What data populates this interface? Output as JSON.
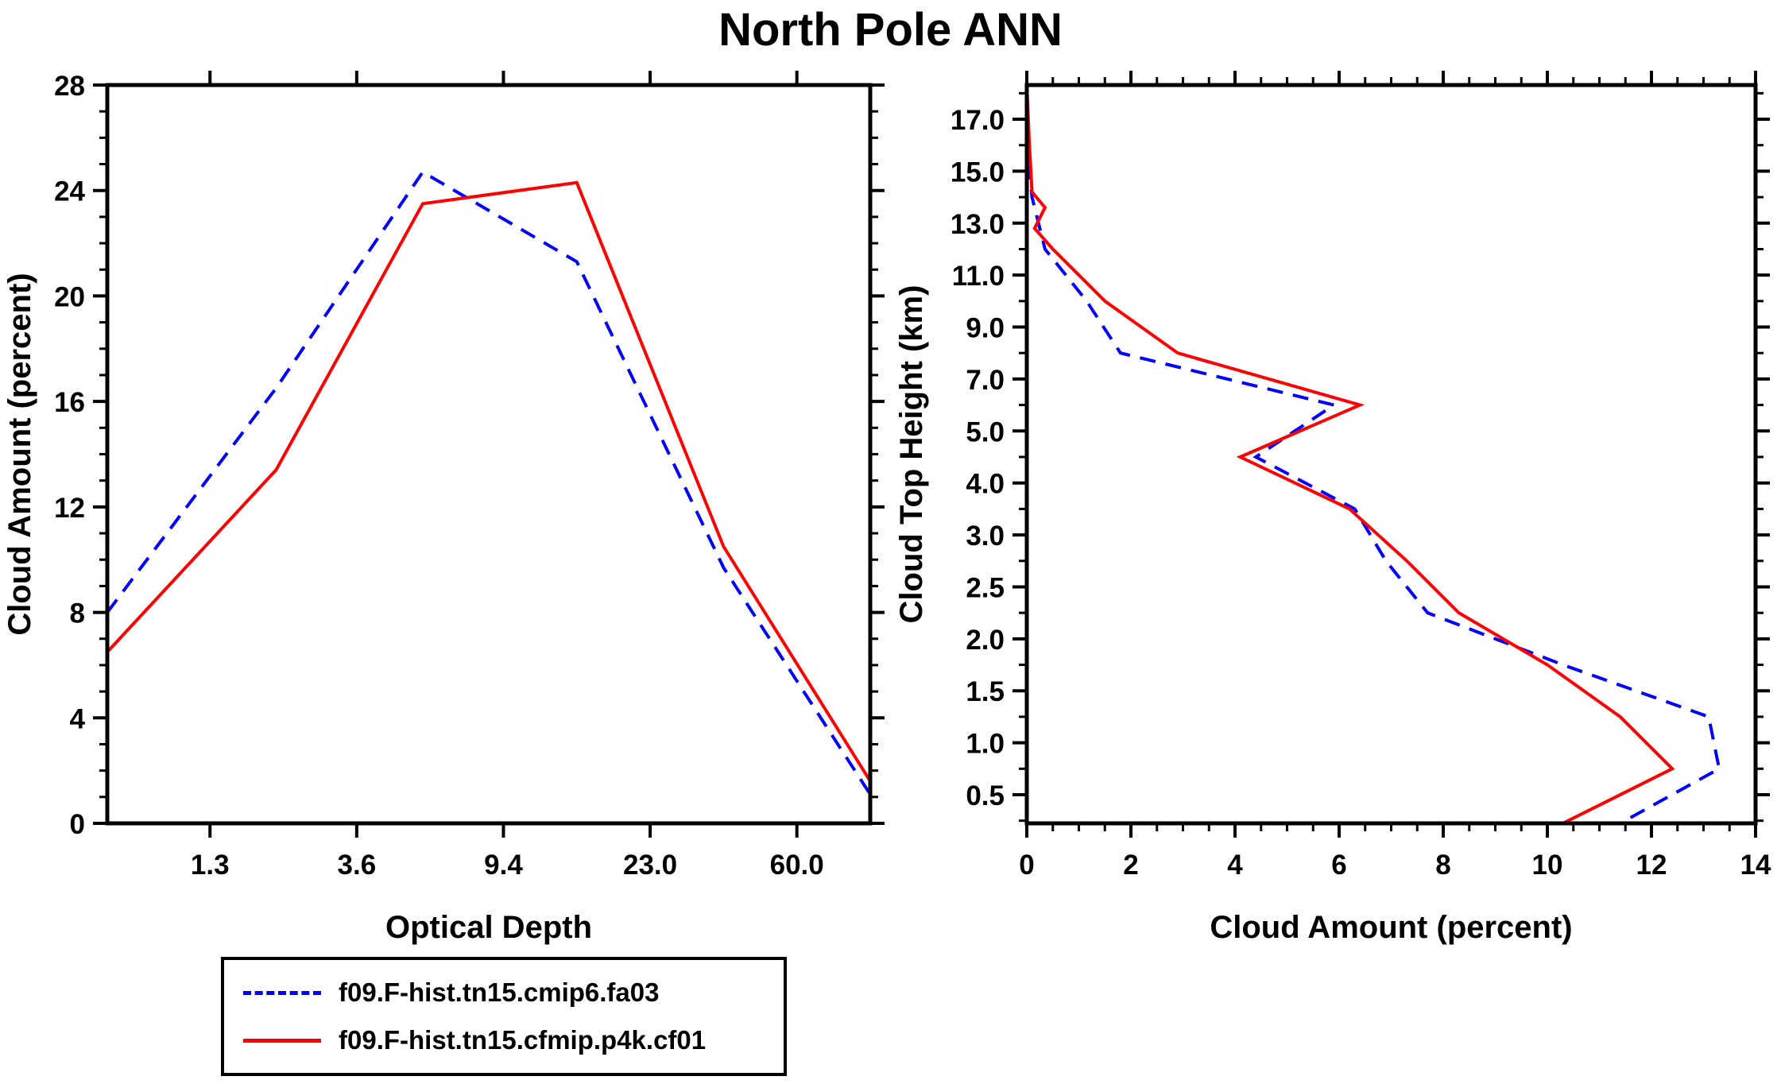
{
  "title": "North Pole ANN",
  "colors": {
    "blue": "#0000ff",
    "red": "#ff0000",
    "axis": "#000000",
    "background": "#ffffff"
  },
  "legend": {
    "entries": [
      {
        "label": "f09.F-hist.tn15.cmip6.fa03",
        "color": "#0000ff",
        "style": "dashed"
      },
      {
        "label": "f09.F-hist.tn15.cfmip.p4k.cf01",
        "color": "#ff0000",
        "style": "solid"
      }
    ]
  },
  "chart_data": [
    {
      "type": "line",
      "panel": "left",
      "title": "North Pole ANN",
      "xlabel": "Optical Depth",
      "ylabel": "Cloud Amount (percent)",
      "x_axis": {
        "kind": "optical-depth-bin-index",
        "note": "x coordinates are bin-boundary index units; labeled boundaries below",
        "range": [
          0.3,
          5.5
        ],
        "ticks": [
          {
            "pos": 1,
            "label": "1.3"
          },
          {
            "pos": 2,
            "label": "3.6"
          },
          {
            "pos": 3,
            "label": "9.4"
          },
          {
            "pos": 4,
            "label": "23.0"
          },
          {
            "pos": 5,
            "label": "60.0"
          }
        ]
      },
      "y_axis": {
        "range": [
          0,
          28
        ],
        "major": [
          0,
          4,
          8,
          12,
          16,
          20,
          24,
          28
        ],
        "labels": [
          "0",
          "4",
          "8",
          "12",
          "16",
          "20",
          "24",
          "28"
        ],
        "minor_step": 1
      },
      "grid": false,
      "series": [
        {
          "name": "f09.F-hist.tn15.cmip6.fa03",
          "color": "#0000ff",
          "dashed": true,
          "points": [
            [
              0.3,
              8.0
            ],
            [
              1.45,
              16.5
            ],
            [
              2.45,
              24.7
            ],
            [
              3.5,
              21.3
            ],
            [
              4.5,
              9.7
            ],
            [
              5.5,
              1.1
            ]
          ]
        },
        {
          "name": "f09.F-hist.tn15.cfmip.p4k.cf01",
          "color": "#ff0000",
          "dashed": false,
          "points": [
            [
              0.3,
              6.5
            ],
            [
              1.45,
              13.4
            ],
            [
              2.45,
              23.5
            ],
            [
              3.5,
              24.3
            ],
            [
              4.5,
              10.5
            ],
            [
              5.5,
              1.6
            ]
          ]
        }
      ]
    },
    {
      "type": "line",
      "panel": "right",
      "xlabel": "Cloud Amount (percent)",
      "ylabel": "Cloud Top Height (km)",
      "x_axis": {
        "range": [
          0,
          14
        ],
        "major_step": 2,
        "minor_step": 0.5,
        "labels": [
          "0",
          "2",
          "4",
          "6",
          "8",
          "10",
          "12",
          "14"
        ]
      },
      "y_axis": {
        "kind": "discrete-height-levels",
        "note": "labels equally spaced top-to-bottom; data vertices fall midway between labeled levels",
        "labels": [
          "17.0",
          "15.0",
          "13.0",
          "11.0",
          "9.0",
          "7.0",
          "5.0",
          "4.0",
          "3.0",
          "2.5",
          "2.0",
          "1.5",
          "1.0",
          "0.5"
        ],
        "level_midpoints_km": [
          16,
          14,
          12,
          10,
          8,
          6,
          4.5,
          3.5,
          2.75,
          2.25,
          1.75,
          1.25,
          0.75
        ]
      },
      "grid": false,
      "series": [
        {
          "name": "f09.F-hist.tn15.cmip6.fa03",
          "color": "#0000ff",
          "dashed": true,
          "note": "points are [cloud_amount_percent, level_index (0=17.0 label)]",
          "points": [
            [
              0.0,
              -0.66
            ],
            [
              0.0,
              0.5
            ],
            [
              0.1,
              1.5
            ],
            [
              0.35,
              2.5
            ],
            [
              1.15,
              3.5
            ],
            [
              1.8,
              4.5
            ],
            [
              5.9,
              5.5
            ],
            [
              4.4,
              6.5
            ],
            [
              6.3,
              7.5
            ],
            [
              6.9,
              8.5
            ],
            [
              7.7,
              9.5
            ],
            [
              10.3,
              10.5
            ],
            [
              13.1,
              11.5
            ],
            [
              13.3,
              12.5
            ],
            [
              11.4,
              13.55
            ]
          ]
        },
        {
          "name": "f09.F-hist.tn15.cfmip.p4k.cf01",
          "color": "#ff0000",
          "dashed": false,
          "note": "points are [cloud_amount_percent, level_index (0=17.0 label)]",
          "points": [
            [
              0.0,
              -0.66
            ],
            [
              0.05,
              0.5
            ],
            [
              0.1,
              1.4
            ],
            [
              0.35,
              1.7
            ],
            [
              0.15,
              2.1
            ],
            [
              0.5,
              2.5
            ],
            [
              1.5,
              3.5
            ],
            [
              2.9,
              4.5
            ],
            [
              6.4,
              5.5
            ],
            [
              4.1,
              6.5
            ],
            [
              6.2,
              7.5
            ],
            [
              7.3,
              8.5
            ],
            [
              8.3,
              9.5
            ],
            [
              10.0,
              10.5
            ],
            [
              11.4,
              11.5
            ],
            [
              12.4,
              12.5
            ],
            [
              10.3,
              13.55
            ]
          ]
        }
      ]
    }
  ]
}
